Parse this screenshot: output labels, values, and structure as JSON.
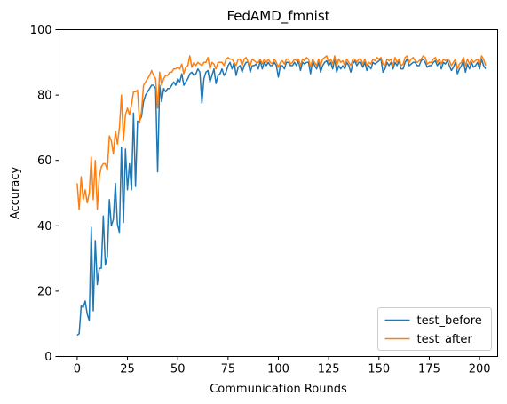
{
  "chart_data": {
    "type": "line",
    "title": "FedAMD_fmnist",
    "xlabel": "Communication Rounds",
    "ylabel": "Accuracy",
    "xlim": [
      -9,
      209
    ],
    "ylim": [
      0,
      100
    ],
    "xticks": [
      0,
      25,
      50,
      75,
      100,
      125,
      150,
      175,
      200
    ],
    "yticks": [
      0,
      20,
      40,
      60,
      80,
      100
    ],
    "legend_position": "lower-right",
    "grid": false,
    "series": [
      {
        "name": "test_before",
        "color": "#1f77b4",
        "values": [
          6.5,
          7,
          15.5,
          15,
          17,
          13,
          11,
          39.5,
          14,
          35.5,
          22,
          27,
          27,
          43,
          28,
          30.5,
          48,
          40,
          42,
          53,
          40.5,
          38,
          64,
          41,
          63.5,
          51,
          59,
          51,
          74.5,
          52,
          72,
          72,
          73.5,
          78,
          80,
          81,
          82,
          83,
          83,
          82,
          56.5,
          83,
          78,
          82,
          81,
          82,
          82,
          83,
          84,
          83,
          85,
          84,
          86.5,
          83,
          84,
          85,
          86.5,
          87,
          86,
          86.5,
          88,
          87,
          77.5,
          85,
          87,
          87.5,
          84,
          86,
          88,
          83.5,
          86,
          86.5,
          88,
          86,
          87,
          89,
          90,
          88,
          90,
          86,
          88.5,
          89,
          87,
          89,
          90,
          90,
          87,
          89,
          89,
          89.5,
          88,
          90.5,
          88,
          90,
          89,
          90,
          89,
          89,
          90,
          89,
          85.5,
          89,
          89,
          88,
          90,
          90,
          89,
          89,
          90,
          89,
          90.5,
          87.5,
          90,
          89.5,
          90,
          90,
          86.5,
          90.5,
          89,
          88,
          90,
          87,
          89,
          90,
          90.5,
          89,
          90,
          88,
          91,
          87,
          89,
          88,
          89,
          88,
          90,
          89,
          87,
          89.5,
          90.5,
          89,
          90,
          90,
          88.5,
          90,
          87.5,
          89,
          88,
          90,
          89.5,
          90,
          90.5,
          91,
          87,
          88,
          90,
          89,
          90,
          88,
          90,
          89,
          90.5,
          88,
          88,
          90,
          91,
          89,
          89.5,
          90,
          90,
          89,
          89,
          90.5,
          91,
          90,
          88.5,
          89,
          89,
          90,
          90.5,
          89,
          90,
          88,
          90,
          89.5,
          90.5,
          89,
          87.5,
          88.5,
          90,
          86.5,
          88,
          89,
          90.5,
          87,
          89.5,
          88,
          90,
          88.5,
          89,
          90,
          88,
          91,
          89,
          88
        ]
      },
      {
        "name": "test_after",
        "color": "#ff7f0e",
        "values": [
          53,
          45,
          55,
          48,
          51,
          47,
          50,
          61,
          48,
          60,
          45,
          55,
          58,
          59,
          59,
          57,
          67.5,
          66,
          62,
          69,
          65,
          70,
          80,
          66,
          74,
          76,
          74,
          77,
          81,
          81,
          81.5,
          71.5,
          75,
          83,
          84,
          85,
          86,
          87.5,
          86,
          85,
          76,
          87,
          83,
          85,
          86,
          86,
          87,
          87,
          88,
          88,
          88.5,
          88,
          89.5,
          86.5,
          88.5,
          89,
          92,
          88.5,
          90,
          89,
          90,
          89.5,
          89,
          90,
          90,
          91.5,
          88,
          90,
          89.5,
          88,
          90,
          90,
          90,
          89,
          91,
          91.5,
          91,
          91,
          90,
          89,
          91,
          91,
          89,
          91,
          91.5,
          90,
          89,
          91,
          90.5,
          90,
          90,
          91,
          89.5,
          91,
          90,
          91,
          90,
          89.5,
          91,
          90,
          88.5,
          90,
          90.5,
          89.5,
          91,
          91,
          89.5,
          90,
          91,
          90.5,
          91,
          89,
          91,
          90.5,
          91.5,
          91,
          88.5,
          91,
          90,
          89,
          91,
          89,
          91,
          91.5,
          92,
          90,
          91,
          89.5,
          92,
          89,
          91,
          90,
          90.5,
          89,
          91,
          90,
          89,
          91,
          91,
          90,
          91,
          91,
          89.5,
          91,
          89,
          90,
          89.5,
          91,
          90.5,
          91.5,
          91,
          91.5,
          89.5,
          89,
          91,
          90.5,
          91,
          89,
          91.5,
          90,
          91,
          89,
          89.5,
          91.5,
          92,
          90,
          91,
          91.5,
          90.5,
          90,
          90.5,
          91,
          92,
          91.5,
          89.5,
          90,
          90,
          91,
          91.5,
          90,
          91,
          89.5,
          91,
          90.5,
          91,
          90.5,
          89,
          90,
          91,
          88,
          89.5,
          90,
          91.5,
          89,
          91,
          89.5,
          91,
          90,
          90.5,
          91,
          89.5,
          92,
          91,
          89
        ]
      }
    ]
  }
}
